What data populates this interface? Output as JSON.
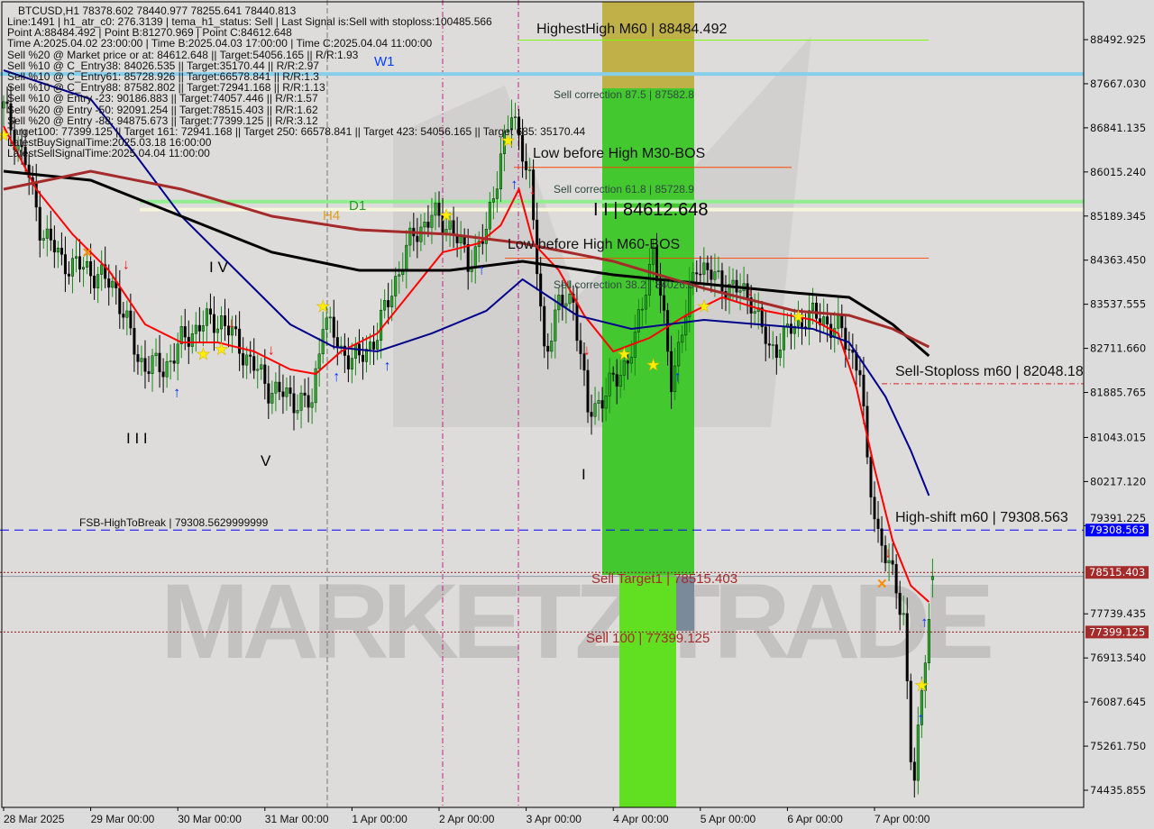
{
  "header": {
    "title_line": "BTCUSD,H1  78378.602 78440.977 78255.641 78440.813",
    "info_lines": [
      "Line:1491 | h1_atr_c0: 276.3139 | tema_h1_status: Sell | Last Signal is:Sell with stoploss:100485.566",
      "Point A:88484.492 | Point B:81270.969 | Point C:84612.648",
      "Time A:2025.04.02 23:00:00 | Time B:2025.04.03 17:00:00 | Time C:2025.04.04 11:00:00",
      "Sell %20 @ Market price or at: 84612.648 || Target:54056.165 || R/R:1.93",
      "Sell %10 @ C_Entry38: 84026.535 || Target:35170.44 || R/R:2.97",
      "Sell %10 @ C_Entry61: 85728.926 || Target:66578.841 || R/R:1.3",
      "Sell %10 @ C_Entry88: 87582.802 || Target:72941.168 || R/R:1.13",
      "Sell %10 @ Entry -23: 90186.883 || Target:74057.446 || R/R:1.57",
      "Sell %20 @ Entry -50: 92091.254 || Target:78515.403 || R/R:1.62",
      "Sell %20 @ Entry -88: 94875.673 || Target:77399.125 || R/R:3.12",
      "Target100: 77399.125 || Target 161: 72941.168 || Target 250: 66578.841 || Target 423: 54056.165 || Target 685: 35170.44",
      "LatestBuySignalTime:2025.03.18 16:00:00",
      "LatestSellSignalTime:2025.04.04 11:00:00"
    ]
  },
  "annotations": {
    "highest_high": "HighestHigh    M60 | 88484.492",
    "sell_corr_875": "Sell correction 87.5 | 87582.8",
    "low_before_high_m30": "Low before High    M30-BOS",
    "sell_corr_618": "Sell correction 61.8 | 85728.9",
    "point_c": "I I | 84612.648",
    "low_before_high_m60": "Low before High    M60-BOS",
    "sell_corr_382": "Sell correction 38.2 | 84026.5",
    "w1": "W1",
    "d1": "D1",
    "h4": "H4",
    "wave_iv": "I V",
    "wave_iii": "I I I",
    "wave_v": "V",
    "wave_i": "I",
    "sell_stoploss": "Sell-Stoploss m60 | 82048.18",
    "high_shift": "High-shift m60 | 79308.563",
    "fsb": "FSB-HighToBreak | 79308.5629999999",
    "sell_target1": "Sell Target1 | 78515.403",
    "sell_100": "Sell 100 | 77399.125",
    "watermark": "MARKETZITRADE"
  },
  "chart_data": {
    "type": "candlestick",
    "symbol": "BTCUSD",
    "timeframe": "H1",
    "last_ohlc": {
      "open": 78378.602,
      "high": 78440.977,
      "low": 78255.641,
      "close": 78440.813
    },
    "ylim": [
      74000,
      88900
    ],
    "y_ticks": [
      "88492.925",
      "87667.030",
      "86841.135",
      "86015.240",
      "85189.345",
      "84363.450",
      "83537.555",
      "82711.660",
      "81885.765",
      "81043.015",
      "80217.120",
      "79391.225",
      "77739.435",
      "76913.540",
      "76087.645",
      "75261.750",
      "74435.855"
    ],
    "x_ticks": [
      "28 Mar 2025",
      "29 Mar 00:00",
      "30 Mar 00:00",
      "31 Mar 00:00",
      "1 Apr 00:00",
      "2 Apr 00:00",
      "3 Apr 00:00",
      "4 Apr 00:00",
      "5 Apr 00:00",
      "6 Apr 00:00",
      "7 Apr 00:00"
    ],
    "price_path": [
      [
        "03-28 00:00",
        87210
      ],
      [
        "03-28 06:00",
        86198
      ],
      [
        "03-28 10:00",
        85017
      ],
      [
        "03-28 16:00",
        84342
      ],
      [
        "03-29 00:00",
        84173
      ],
      [
        "03-29 07:00",
        83836
      ],
      [
        "03-29 13:00",
        82486
      ],
      [
        "03-29 20:00",
        82317
      ],
      [
        "03-30 01:00",
        82823
      ],
      [
        "03-30 06:00",
        83160
      ],
      [
        "03-30 12:00",
        83245
      ],
      [
        "03-30 18:00",
        82654
      ],
      [
        "03-31 01:00",
        81979
      ],
      [
        "03-31 06:00",
        81810
      ],
      [
        "03-31 13:00",
        81642
      ],
      [
        "03-31 16:00",
        83329
      ],
      [
        "03-31 21:00",
        82654
      ],
      [
        "04-01 02:00",
        82486
      ],
      [
        "04-01 07:00",
        82992
      ],
      [
        "04-01 12:00",
        84004
      ],
      [
        "04-01 17:00",
        84848
      ],
      [
        "04-01 22:00",
        85185
      ],
      [
        "04-02 03:00",
        85017
      ],
      [
        "04-02 08:00",
        84342
      ],
      [
        "04-02 13:00",
        84848
      ],
      [
        "04-02 17:00",
        86367
      ],
      [
        "04-02 20:00",
        87042
      ],
      [
        "04-02 23:00",
        86500
      ],
      [
        "04-03 01:00",
        85861
      ],
      [
        "04-03 03:00",
        84173
      ],
      [
        "04-03 05:00",
        82654
      ],
      [
        "04-03 09:00",
        83498
      ],
      [
        "04-03 13:00",
        83667
      ],
      [
        "04-03 17:00",
        81473
      ],
      [
        "04-04 01:00",
        82148
      ],
      [
        "04-04 06:00",
        82823
      ],
      [
        "04-04 11:00",
        84612
      ],
      [
        "04-04 16:00",
        82148
      ],
      [
        "04-04 20:00",
        83329
      ],
      [
        "04-04 23:00",
        84342
      ],
      [
        "04-05 04:00",
        84004
      ],
      [
        "04-05 09:00",
        83836
      ],
      [
        "04-05 14:00",
        83667
      ],
      [
        "04-05 19:00",
        82654
      ],
      [
        "04-06 00:00",
        82992
      ],
      [
        "04-06 05:00",
        83329
      ],
      [
        "04-06 10:00",
        83245
      ],
      [
        "04-06 15:00",
        82992
      ],
      [
        "04-06 20:00",
        82317
      ],
      [
        "04-06 22:00",
        80461
      ],
      [
        "04-07 01:00",
        79279
      ],
      [
        "04-07 04:00",
        78604
      ],
      [
        "04-07 08:00",
        77760
      ],
      [
        "04-07 10:00",
        75060
      ],
      [
        "04-07 11:00",
        74600
      ],
      [
        "04-07 12:00",
        75397
      ],
      [
        "04-07 14:00",
        77085
      ],
      [
        "04-07 16:00",
        78441
      ]
    ],
    "series": [
      {
        "color": "#ff0000",
        "points": [
          [
            "03-28 00:00",
            86873
          ],
          [
            "03-28 09:00",
            85692
          ],
          [
            "03-28 19:00",
            84848
          ],
          [
            "03-29 05:00",
            84173
          ],
          [
            "03-29 15:00",
            83160
          ],
          [
            "03-30 01:00",
            82823
          ],
          [
            "03-30 11:00",
            82823
          ],
          [
            "03-30 21:00",
            82654
          ],
          [
            "03-31 07:00",
            82317
          ],
          [
            "03-31 14:00",
            82232
          ],
          [
            "03-31 21:00",
            82654
          ],
          [
            "04-01 07:00",
            82992
          ],
          [
            "04-01 17:00",
            83836
          ],
          [
            "04-02 01:00",
            84511
          ],
          [
            "04-02 11:00",
            84679
          ],
          [
            "04-02 17:00",
            85017
          ],
          [
            "04-02 22:00",
            85692
          ],
          [
            "04-03 02:00",
            84679
          ],
          [
            "04-03 09:00",
            84173
          ],
          [
            "04-03 16:00",
            83329
          ],
          [
            "04-04 00:00",
            82654
          ],
          [
            "04-04 10:00",
            82907
          ],
          [
            "04-04 20:00",
            83329
          ],
          [
            "04-05 06:00",
            83667
          ],
          [
            "04-05 18:00",
            83414
          ],
          [
            "04-06 07:00",
            83245
          ],
          [
            "04-06 14:00",
            82992
          ],
          [
            "04-06 19:00",
            81979
          ],
          [
            "04-07 00:00",
            80461
          ],
          [
            "04-07 05:00",
            79110
          ],
          [
            "04-07 10:00",
            78267
          ],
          [
            "04-07 15:00",
            77963
          ]
        ]
      },
      {
        "color": "#00008b",
        "points": [
          [
            "03-28 00:00",
            87919
          ],
          [
            "03-29 00:00",
            87379
          ],
          [
            "03-29 12:00",
            86367
          ],
          [
            "03-30 01:00",
            85185
          ],
          [
            "03-30 16:00",
            84173
          ],
          [
            "03-31 07:00",
            83160
          ],
          [
            "03-31 19:00",
            82738
          ],
          [
            "04-01 07:00",
            82654
          ],
          [
            "04-01 22:00",
            82992
          ],
          [
            "04-02 13:00",
            83414
          ],
          [
            "04-02 23:00",
            84004
          ],
          [
            "04-03 14:00",
            83329
          ],
          [
            "04-04 05:00",
            83076
          ],
          [
            "04-05 01:00",
            83245
          ],
          [
            "04-05 16:00",
            83160
          ],
          [
            "04-06 07:00",
            83076
          ],
          [
            "04-06 17:00",
            82823
          ],
          [
            "04-07 03:00",
            81810
          ],
          [
            "04-07 10:00",
            80798
          ],
          [
            "04-07 15:00",
            79954
          ]
        ]
      },
      {
        "color": "#000000",
        "points": [
          [
            "03-28 00:00",
            86029
          ],
          [
            "03-29 00:00",
            85860
          ],
          [
            "03-30 01:00",
            85185
          ],
          [
            "03-31 02:00",
            84511
          ],
          [
            "04-01 02:00",
            84173
          ],
          [
            "04-02 03:00",
            84173
          ],
          [
            "04-02 23:00",
            84342
          ],
          [
            "04-04 00:00",
            84089
          ],
          [
            "04-05 01:00",
            83920
          ],
          [
            "04-06 02:00",
            83751
          ],
          [
            "04-06 17:00",
            83667
          ],
          [
            "04-07 05:00",
            83160
          ],
          [
            "04-07 15:00",
            82570
          ]
        ]
      },
      {
        "color": "#a52a2a",
        "points": [
          [
            "03-28 00:00",
            85692
          ],
          [
            "03-29 00:00",
            86029
          ],
          [
            "03-30 01:00",
            85692
          ],
          [
            "03-31 02:00",
            85185
          ],
          [
            "04-01 02:00",
            84932
          ],
          [
            "04-02 03:00",
            84848
          ],
          [
            "04-02 23:00",
            84679
          ],
          [
            "04-04 00:00",
            84342
          ],
          [
            "04-05 01:00",
            83836
          ],
          [
            "04-06 02:00",
            83414
          ],
          [
            "04-06 17:00",
            83329
          ],
          [
            "04-07 05:00",
            83076
          ],
          [
            "04-07 15:00",
            82738
          ]
        ]
      }
    ],
    "levels": {
      "highest_high": 88484.492,
      "w1": 87850,
      "d1": 85460,
      "h4": 85310,
      "low_before_high_m30": 86100,
      "low_before_high_m60": 84400,
      "sell_stoploss": 82048.18,
      "high_shift": 79308.563,
      "sell_target1": 78515.403,
      "current": 78440.813,
      "sell_100": 77399.125
    },
    "price_badges": [
      {
        "text": "79308.563",
        "color": "#0000ff"
      },
      {
        "text": "78515.403",
        "color": "#a52a2a"
      },
      {
        "text": "77399.125",
        "color": "#a52a2a"
      }
    ],
    "signals": [
      {
        "t": "03-28 00:00",
        "p": 86700,
        "type": "star"
      },
      {
        "t": "03-28 23:00",
        "p": 84500,
        "type": "x"
      },
      {
        "t": "03-29 10:00",
        "p": 84300,
        "type": "sell"
      },
      {
        "t": "03-30 00:00",
        "p": 81900,
        "type": "buy"
      },
      {
        "t": "03-30 07:00",
        "p": 82600,
        "type": "star"
      },
      {
        "t": "03-30 12:00",
        "p": 82700,
        "type": "star"
      },
      {
        "t": "03-30 15:00",
        "p": 83200,
        "type": "sell"
      },
      {
        "t": "03-31 02:00",
        "p": 82700,
        "type": "sell"
      },
      {
        "t": "03-31 16:00",
        "p": 83500,
        "type": "star"
      },
      {
        "t": "03-31 20:00",
        "p": 82200,
        "type": "buy"
      },
      {
        "t": "04-01 10:00",
        "p": 82400,
        "type": "buy"
      },
      {
        "t": "04-02 02:00",
        "p": 85200,
        "type": "star"
      },
      {
        "t": "04-02 12:00",
        "p": 84200,
        "type": "buy"
      },
      {
        "t": "04-02 19:00",
        "p": 86600,
        "type": "star"
      },
      {
        "t": "04-02 21:00",
        "p": 85800,
        "type": "buy"
      },
      {
        "t": "04-03 02:00",
        "p": 85700,
        "type": "sell"
      },
      {
        "t": "04-03 17:00",
        "p": 82700,
        "type": "sell"
      },
      {
        "t": "04-04 03:00",
        "p": 82600,
        "type": "star"
      },
      {
        "t": "04-04 11:00",
        "p": 82400,
        "type": "star"
      },
      {
        "t": "04-04 18:00",
        "p": 82200,
        "type": "buy"
      },
      {
        "t": "04-05 01:00",
        "p": 83500,
        "type": "star"
      },
      {
        "t": "04-05 14:00",
        "p": 83800,
        "type": "sell"
      },
      {
        "t": "04-06 03:00",
        "p": 83300,
        "type": "star"
      },
      {
        "t": "04-07 04:00",
        "p": 78900,
        "type": "sell"
      },
      {
        "t": "04-07 02:00",
        "p": 78300,
        "type": "x"
      },
      {
        "t": "04-07 13:00",
        "p": 76400,
        "type": "star"
      },
      {
        "t": "04-07 13:00",
        "p": 75800,
        "type": "buy"
      },
      {
        "t": "04-07 14:00",
        "p": 77600,
        "type": "buy"
      }
    ]
  }
}
